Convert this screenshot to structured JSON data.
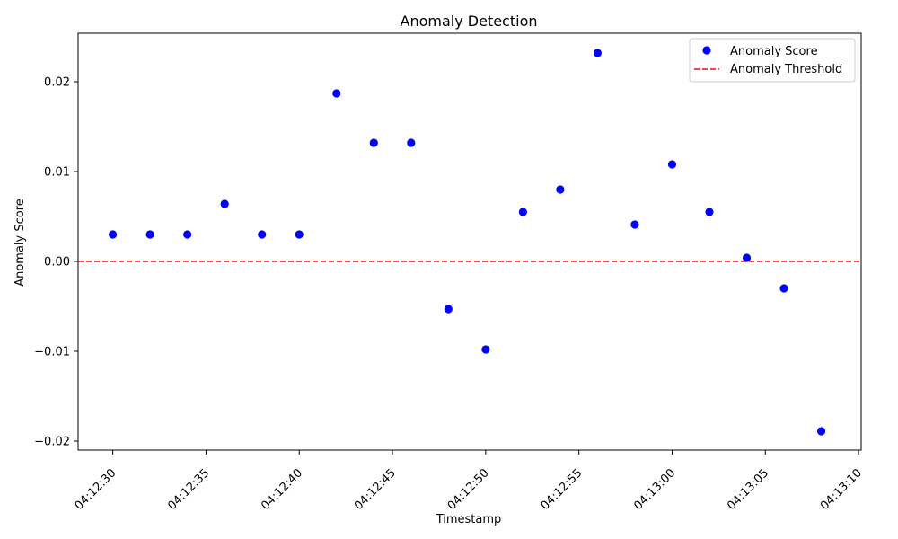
{
  "chart_data": {
    "type": "scatter",
    "title": "Anomaly Detection",
    "xlabel": "Timestamp",
    "ylabel": "Anomaly Score",
    "x_ticks": [
      "04:12:30",
      "04:12:35",
      "04:12:40",
      "04:12:45",
      "04:12:50",
      "04:12:55",
      "04:13:00",
      "04:13:05",
      "04:13:10"
    ],
    "y_ticks": [
      -0.02,
      -0.01,
      0.0,
      0.01,
      0.02
    ],
    "y_tick_labels": [
      "−0.02",
      "−0.01",
      "0.00",
      "0.01",
      "0.02"
    ],
    "ylim": [
      -0.021,
      0.0254
    ],
    "xlim": [
      "04:12:28",
      "04:13:10"
    ],
    "grid": false,
    "legend_position": "upper right",
    "series": [
      {
        "name": "Anomaly Score",
        "kind": "scatter",
        "color": "#0000ff",
        "x": [
          "04:12:30",
          "04:12:32",
          "04:12:34",
          "04:12:36",
          "04:12:38",
          "04:12:40",
          "04:12:42",
          "04:12:44",
          "04:12:46",
          "04:12:48",
          "04:12:50",
          "04:12:52",
          "04:12:54",
          "04:12:56",
          "04:12:58",
          "04:13:00",
          "04:13:02",
          "04:13:04",
          "04:13:06",
          "04:13:08"
        ],
        "y": [
          0.003,
          0.003,
          0.003,
          0.0064,
          0.003,
          0.003,
          0.0187,
          0.0132,
          0.0132,
          -0.0053,
          -0.0098,
          0.0055,
          0.008,
          0.0232,
          0.0041,
          0.0108,
          0.0055,
          0.0004,
          -0.003,
          -0.0189
        ]
      },
      {
        "name": "Anomaly Threshold",
        "kind": "hline",
        "color": "#ff0000",
        "style": "dashed",
        "y": 0.0
      }
    ]
  }
}
